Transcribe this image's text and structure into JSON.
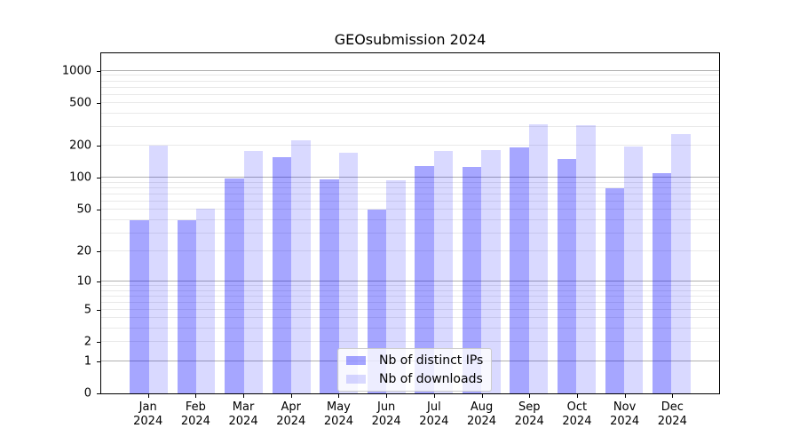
{
  "chart_data": {
    "type": "bar",
    "title": "GEOsubmission 2024",
    "year": "2024",
    "categories": [
      "Jan",
      "Feb",
      "Mar",
      "Apr",
      "May",
      "Jun",
      "Jul",
      "Aug",
      "Sep",
      "Oct",
      "Nov",
      "Dec"
    ],
    "series": [
      {
        "name": "Nb of distinct IPs",
        "color": "#0000ff",
        "alpha": 0.35,
        "values": [
          40,
          40,
          99,
          158,
          97,
          50,
          130,
          128,
          192,
          152,
          80,
          112
        ]
      },
      {
        "name": "Nb of downloads",
        "color": "#0000ff",
        "alpha": 0.15,
        "values": [
          202,
          51,
          178,
          226,
          173,
          96,
          178,
          183,
          320,
          312,
          196,
          260
        ]
      }
    ],
    "xlabel": "",
    "ylabel": "",
    "x_axis": {
      "range": [
        -1,
        12
      ],
      "bar_width_units": 0.4
    },
    "y_axis": {
      "scale": "log1p",
      "range": [
        0,
        1460
      ],
      "tick_values": [
        0,
        1,
        2,
        5,
        10,
        20,
        50,
        100,
        200,
        500,
        1000
      ],
      "tick_labels": [
        "0",
        "1",
        "2",
        "5",
        "10",
        "20",
        "50",
        "100",
        "200",
        "500",
        "1000"
      ],
      "major_gridlines": [
        1,
        10,
        100,
        1000
      ],
      "minor_gridlines": [
        2,
        3,
        4,
        5,
        6,
        7,
        8,
        9,
        20,
        30,
        40,
        50,
        60,
        70,
        80,
        90,
        200,
        300,
        400,
        500,
        600,
        700,
        800,
        900
      ]
    },
    "legend": {
      "position": "lower center"
    },
    "grid": true,
    "colors": {
      "grid_major": "#b0b0b0",
      "grid_minor": "#e9e9e9",
      "spine": "#000000",
      "background": "#ffffff"
    }
  }
}
